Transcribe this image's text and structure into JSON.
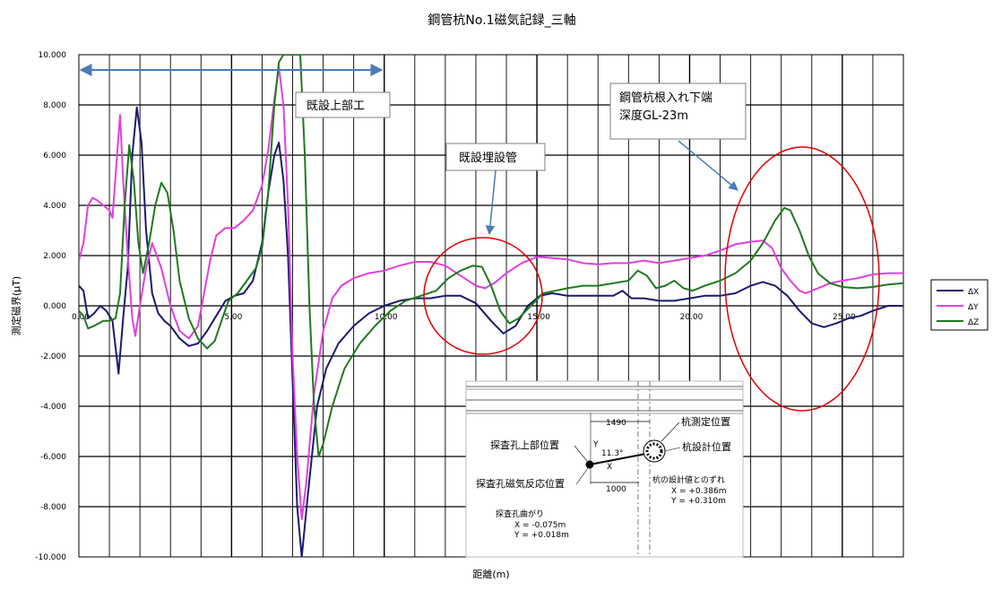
{
  "chart_data": {
    "type": "line",
    "title": "鋼管杭No.1磁気記録_三軸",
    "xlabel": "距離(m)",
    "ylabel": "測定磁界(μT)",
    "xlim": [
      0,
      27
    ],
    "ylim": [
      -10,
      10
    ],
    "x_tick_labels": [
      "0.00",
      "5.00",
      "10.00",
      "15.00",
      "20.00",
      "25.00"
    ],
    "y_tick_labels": [
      "10.000",
      "8.000",
      "6.000",
      "4.000",
      "2.000",
      "0.000",
      "-2.000",
      "-4.000",
      "-6.000",
      "-8.000",
      "-10.000"
    ],
    "grid": true,
    "legend_position": "right",
    "series": [
      {
        "name": "ΔX",
        "color": "#1a1a6e",
        "points": [
          [
            0,
            0.8
          ],
          [
            0.15,
            0.6
          ],
          [
            0.3,
            -0.5
          ],
          [
            0.5,
            -0.3
          ],
          [
            0.7,
            0.0
          ],
          [
            0.9,
            -0.2
          ],
          [
            1.1,
            -0.6
          ],
          [
            1.3,
            -2.7
          ],
          [
            1.45,
            -0.5
          ],
          [
            1.6,
            1.5
          ],
          [
            1.75,
            6.0
          ],
          [
            1.9,
            7.9
          ],
          [
            2.05,
            6.5
          ],
          [
            2.2,
            3.0
          ],
          [
            2.4,
            0.5
          ],
          [
            2.6,
            -0.3
          ],
          [
            2.8,
            -0.6
          ],
          [
            3.0,
            -0.8
          ],
          [
            3.3,
            -1.3
          ],
          [
            3.6,
            -1.6
          ],
          [
            3.9,
            -1.5
          ],
          [
            4.2,
            -1.0
          ],
          [
            4.5,
            -0.4
          ],
          [
            4.8,
            0.2
          ],
          [
            5.1,
            0.4
          ],
          [
            5.4,
            0.5
          ],
          [
            5.7,
            1.0
          ],
          [
            6.0,
            2.5
          ],
          [
            6.2,
            4.5
          ],
          [
            6.4,
            6.0
          ],
          [
            6.55,
            6.5
          ],
          [
            6.7,
            5.0
          ],
          [
            6.85,
            2.0
          ],
          [
            7.0,
            -3.0
          ],
          [
            7.15,
            -8.0
          ],
          [
            7.3,
            -10.0
          ],
          [
            7.5,
            -7.5
          ],
          [
            7.8,
            -4.0
          ],
          [
            8.1,
            -2.5
          ],
          [
            8.5,
            -1.5
          ],
          [
            9.0,
            -0.8
          ],
          [
            9.5,
            -0.3
          ],
          [
            10.0,
            0.0
          ],
          [
            10.5,
            0.2
          ],
          [
            11.0,
            0.3
          ],
          [
            11.5,
            0.3
          ],
          [
            12.0,
            0.4
          ],
          [
            12.5,
            0.4
          ],
          [
            13.0,
            0.1
          ],
          [
            13.5,
            -0.6
          ],
          [
            13.9,
            -1.1
          ],
          [
            14.3,
            -0.8
          ],
          [
            14.7,
            0.0
          ],
          [
            15.1,
            0.4
          ],
          [
            15.5,
            0.5
          ],
          [
            16.0,
            0.4
          ],
          [
            16.5,
            0.4
          ],
          [
            17.0,
            0.4
          ],
          [
            17.5,
            0.4
          ],
          [
            17.8,
            0.6
          ],
          [
            18.1,
            0.3
          ],
          [
            18.5,
            0.3
          ],
          [
            19.0,
            0.2
          ],
          [
            19.5,
            0.2
          ],
          [
            20.0,
            0.3
          ],
          [
            20.5,
            0.4
          ],
          [
            21.0,
            0.4
          ],
          [
            21.5,
            0.5
          ],
          [
            22.0,
            0.8
          ],
          [
            22.4,
            0.95
          ],
          [
            22.8,
            0.8
          ],
          [
            23.2,
            0.4
          ],
          [
            23.6,
            -0.2
          ],
          [
            24.0,
            -0.7
          ],
          [
            24.4,
            -0.85
          ],
          [
            24.8,
            -0.7
          ],
          [
            25.2,
            -0.5
          ],
          [
            25.6,
            -0.4
          ],
          [
            26.0,
            -0.2
          ],
          [
            26.5,
            0.0
          ],
          [
            27.0,
            0.0
          ]
        ]
      },
      {
        "name": "ΔY",
        "color": "#e040e0",
        "points": [
          [
            0,
            1.8
          ],
          [
            0.15,
            2.5
          ],
          [
            0.3,
            4.0
          ],
          [
            0.45,
            4.3
          ],
          [
            0.6,
            4.2
          ],
          [
            0.8,
            4.0
          ],
          [
            1.0,
            3.8
          ],
          [
            1.1,
            3.5
          ],
          [
            1.25,
            6.0
          ],
          [
            1.35,
            7.6
          ],
          [
            1.45,
            5.0
          ],
          [
            1.6,
            2.0
          ],
          [
            1.75,
            -0.5
          ],
          [
            1.85,
            -1.2
          ],
          [
            2.0,
            0.0
          ],
          [
            2.2,
            1.5
          ],
          [
            2.4,
            2.5
          ],
          [
            2.7,
            1.5
          ],
          [
            3.0,
            0.0
          ],
          [
            3.3,
            -1.0
          ],
          [
            3.6,
            -1.3
          ],
          [
            3.9,
            -0.8
          ],
          [
            4.1,
            0.5
          ],
          [
            4.3,
            1.8
          ],
          [
            4.5,
            2.8
          ],
          [
            4.8,
            3.1
          ],
          [
            5.1,
            3.1
          ],
          [
            5.4,
            3.4
          ],
          [
            5.7,
            3.8
          ],
          [
            6.0,
            4.8
          ],
          [
            6.2,
            6.2
          ],
          [
            6.4,
            8.2
          ],
          [
            6.55,
            9.5
          ],
          [
            6.7,
            8.0
          ],
          [
            6.85,
            4.0
          ],
          [
            7.0,
            -2.0
          ],
          [
            7.15,
            -6.0
          ],
          [
            7.3,
            -8.5
          ],
          [
            7.45,
            -7.0
          ],
          [
            7.7,
            -3.5
          ],
          [
            8.0,
            -1.0
          ],
          [
            8.3,
            0.3
          ],
          [
            8.6,
            0.8
          ],
          [
            9.0,
            1.1
          ],
          [
            9.5,
            1.3
          ],
          [
            10.0,
            1.4
          ],
          [
            10.5,
            1.6
          ],
          [
            11.0,
            1.75
          ],
          [
            11.5,
            1.75
          ],
          [
            12.0,
            1.6
          ],
          [
            12.5,
            1.2
          ],
          [
            13.0,
            0.8
          ],
          [
            13.3,
            0.7
          ],
          [
            13.6,
            0.9
          ],
          [
            14.0,
            1.3
          ],
          [
            14.5,
            1.7
          ],
          [
            15.0,
            1.95
          ],
          [
            15.5,
            1.9
          ],
          [
            16.0,
            1.85
          ],
          [
            16.5,
            1.7
          ],
          [
            17.0,
            1.65
          ],
          [
            17.5,
            1.7
          ],
          [
            18.0,
            1.7
          ],
          [
            18.5,
            1.8
          ],
          [
            19.0,
            1.7
          ],
          [
            19.5,
            1.8
          ],
          [
            20.0,
            1.9
          ],
          [
            20.5,
            2.0
          ],
          [
            21.0,
            2.2
          ],
          [
            21.5,
            2.45
          ],
          [
            22.0,
            2.55
          ],
          [
            22.4,
            2.6
          ],
          [
            22.7,
            2.3
          ],
          [
            23.0,
            1.5
          ],
          [
            23.3,
            1.0
          ],
          [
            23.6,
            0.6
          ],
          [
            23.8,
            0.5
          ],
          [
            24.2,
            0.7
          ],
          [
            24.6,
            0.9
          ],
          [
            25.0,
            1.0
          ],
          [
            25.5,
            1.1
          ],
          [
            26.0,
            1.25
          ],
          [
            26.5,
            1.3
          ],
          [
            27.0,
            1.3
          ]
        ]
      },
      {
        "name": "ΔZ",
        "color": "#1e7a1e",
        "points": [
          [
            0,
            -0.2
          ],
          [
            0.15,
            -0.4
          ],
          [
            0.3,
            -0.9
          ],
          [
            0.5,
            -0.8
          ],
          [
            0.8,
            -0.6
          ],
          [
            1.0,
            -0.6
          ],
          [
            1.2,
            -0.5
          ],
          [
            1.35,
            0.5
          ],
          [
            1.5,
            4.0
          ],
          [
            1.65,
            6.4
          ],
          [
            1.8,
            5.0
          ],
          [
            1.95,
            2.5
          ],
          [
            2.1,
            1.3
          ],
          [
            2.3,
            2.5
          ],
          [
            2.5,
            4.0
          ],
          [
            2.7,
            4.9
          ],
          [
            2.9,
            4.5
          ],
          [
            3.1,
            3.0
          ],
          [
            3.3,
            1.0
          ],
          [
            3.6,
            -0.5
          ],
          [
            3.9,
            -1.3
          ],
          [
            4.2,
            -1.7
          ],
          [
            4.45,
            -1.4
          ],
          [
            4.7,
            -0.5
          ],
          [
            4.9,
            0.2
          ],
          [
            5.2,
            0.5
          ],
          [
            5.5,
            1.0
          ],
          [
            5.8,
            1.5
          ],
          [
            6.0,
            2.3
          ],
          [
            6.2,
            4.5
          ],
          [
            6.4,
            8.0
          ],
          [
            6.55,
            9.7
          ],
          [
            6.7,
            10.0
          ],
          [
            6.85,
            10.0
          ],
          [
            7.0,
            10.0
          ],
          [
            7.15,
            10.0
          ],
          [
            7.25,
            10.0
          ],
          [
            7.4,
            6.0
          ],
          [
            7.55,
            0.0
          ],
          [
            7.7,
            -4.0
          ],
          [
            7.85,
            -6.0
          ],
          [
            8.0,
            -5.5
          ],
          [
            8.3,
            -4.0
          ],
          [
            8.7,
            -2.5
          ],
          [
            9.2,
            -1.5
          ],
          [
            9.7,
            -0.8
          ],
          [
            10.2,
            -0.2
          ],
          [
            10.7,
            0.2
          ],
          [
            11.2,
            0.4
          ],
          [
            11.7,
            0.6
          ],
          [
            12.1,
            1.1
          ],
          [
            12.5,
            1.4
          ],
          [
            12.9,
            1.6
          ],
          [
            13.2,
            1.55
          ],
          [
            13.5,
            0.8
          ],
          [
            13.8,
            -0.2
          ],
          [
            14.1,
            -0.7
          ],
          [
            14.4,
            -0.5
          ],
          [
            14.8,
            0.0
          ],
          [
            15.2,
            0.5
          ],
          [
            15.6,
            0.6
          ],
          [
            16.0,
            0.7
          ],
          [
            16.5,
            0.8
          ],
          [
            17.0,
            0.8
          ],
          [
            17.5,
            0.9
          ],
          [
            18.0,
            1.0
          ],
          [
            18.3,
            1.4
          ],
          [
            18.6,
            1.2
          ],
          [
            18.9,
            0.7
          ],
          [
            19.2,
            0.8
          ],
          [
            19.5,
            1.0
          ],
          [
            19.8,
            0.7
          ],
          [
            20.1,
            0.6
          ],
          [
            20.5,
            0.8
          ],
          [
            21.0,
            1.0
          ],
          [
            21.5,
            1.3
          ],
          [
            22.0,
            1.8
          ],
          [
            22.4,
            2.5
          ],
          [
            22.8,
            3.4
          ],
          [
            23.1,
            3.9
          ],
          [
            23.3,
            3.8
          ],
          [
            23.6,
            3.0
          ],
          [
            23.9,
            2.0
          ],
          [
            24.2,
            1.3
          ],
          [
            24.6,
            0.9
          ],
          [
            25.0,
            0.75
          ],
          [
            25.5,
            0.7
          ],
          [
            26.0,
            0.75
          ],
          [
            26.5,
            0.85
          ],
          [
            27.0,
            0.9
          ]
        ]
      }
    ],
    "annotations": [
      {
        "id": "existing-structure",
        "text": "既設上部工"
      },
      {
        "id": "existing-pipe",
        "text": "既設埋設管"
      },
      {
        "id": "pile-bottom",
        "lines": [
          "鋼管杭根入れ下端",
          "深度GL-23m"
        ]
      }
    ],
    "inset": {
      "dimension_top": "1490",
      "dimension_bottom": "1000",
      "angle": "11.3°",
      "axis_y": "Y",
      "axis_x": "X",
      "label_hole_top": "探査孔上部位置",
      "label_hole_magnetic": "探査孔磁気反応位置",
      "label_pile_measured": "杭測定位置",
      "label_pile_design": "杭設計位置",
      "deviation_title": "杭の設計値とのずれ",
      "deviation_x": "X = +0.386m",
      "deviation_y": "Y = +0.310m",
      "bend_title": "探査孔曲がり",
      "bend_x": "X = -0.075m",
      "bend_y": "Y = +0.018m"
    }
  }
}
